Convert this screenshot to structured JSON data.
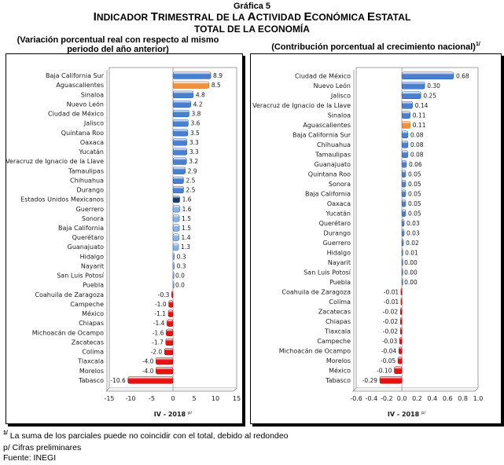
{
  "header": {
    "graph_number": "Gráfica 5",
    "title_parts": [
      {
        "big": "I",
        "small": "NDICADOR "
      },
      {
        "big": "T",
        "small": "RIMESTRAL DE LA "
      },
      {
        "big": "A",
        "small": "CTIVIDAD "
      },
      {
        "big": "E",
        "small": "CONÓMICA "
      },
      {
        "big": "E",
        "small": "STATAL"
      }
    ],
    "title": "Indicador Trimestral de la Actividad Económica Estatal",
    "subtitle": "TOTAL DE LA ECONOMÍA"
  },
  "footnotes": {
    "note1_marker": "1/",
    "note1": " La suma de los parciales puede no coincidir con el total, debido al redondeo",
    "note2": "p/ Cifras preliminares",
    "note3": "Fuente: INEGI"
  },
  "colors": {
    "positive": "#4a7fd0",
    "highlight": "#f0923a",
    "national": "#1f3864",
    "small_positive": "#8eb1e3",
    "negative": "#e81010"
  },
  "chart_data": [
    {
      "type": "bar",
      "orientation": "horizontal",
      "title": "(Variación porcentual real con respecto al mismo periodo del año anterior)",
      "title_lines": [
        "(Variación porcentual real con respecto al mismo",
        "periodo del año anterior)"
      ],
      "xlabel": "IV - 2018",
      "xlabel_sup": "p/",
      "xlim": [
        -15,
        15
      ],
      "xticks": [
        -15,
        -10,
        -5,
        0,
        5,
        10,
        15
      ],
      "xtick_labels": [
        "-15",
        "-10",
        "-5",
        "0",
        "5",
        "10",
        "15"
      ],
      "grid": false,
      "categories": [
        "Baja California Sur",
        "Aguascalientes",
        "Sinaloa",
        "Nuevo León",
        "Ciudad de México",
        "Jalisco",
        "Quintana Roo",
        "Oaxaca",
        "Yucatán",
        "Veracruz de Ignacio de la Llave",
        "Tamaulipas",
        "Chihuahua",
        "Durango",
        "Estados Unidos Mexicanos",
        "Guerrero",
        "Sonora",
        "Baja California",
        "Querétaro",
        "Guanajuato",
        "Hidalgo",
        "Nayarit",
        "San Luis Potosí",
        "Puebla",
        "Coahuila de Zaragoza",
        "Campeche",
        "México",
        "Chiapas",
        "Michoacán de Ocampo",
        "Zacatecas",
        "Colima",
        "Tlaxcala",
        "Morelos",
        "Tabasco"
      ],
      "values": [
        8.9,
        8.5,
        4.8,
        4.2,
        3.8,
        3.6,
        3.5,
        3.3,
        3.3,
        3.2,
        2.9,
        2.5,
        2.5,
        1.6,
        1.6,
        1.5,
        1.5,
        1.4,
        1.3,
        0.3,
        0.3,
        0.0,
        0.0,
        -0.3,
        -1.0,
        -1.1,
        -1.4,
        -1.6,
        -1.7,
        -2.0,
        -4.0,
        -4.0,
        -10.6
      ],
      "value_labels": [
        "8.9",
        "8.5",
        "4.8",
        "4.2",
        "3.8",
        "3.6",
        "3.5",
        "3.3",
        "3.3",
        "3.2",
        "2.9",
        "2.5",
        "2.5",
        "1.6",
        "1.6",
        "1.5",
        "1.5",
        "1.4",
        "1.3",
        "0.3",
        "0.3",
        "0.0",
        "0.0",
        "-0.3",
        "-1.0",
        "-1.1",
        "-1.4",
        "-1.6",
        "-1.7",
        "-2.0",
        "-4.0",
        "-4.0",
        "-10.6"
      ],
      "highlight": {
        "Aguascalientes": "highlight",
        "Estados Unidos Mexicanos": "national"
      }
    },
    {
      "type": "bar",
      "orientation": "horizontal",
      "title": "(Contribución porcentual al crecimiento nacional)",
      "title_sup": "1/",
      "xlabel": "IV - 2018",
      "xlabel_sup": "p/",
      "xlim": [
        -0.6,
        1.0
      ],
      "xticks": [
        -0.6,
        -0.4,
        -0.2,
        0.0,
        0.2,
        0.4,
        0.6,
        0.8,
        1.0
      ],
      "xtick_labels": [
        "-0.6",
        "-0.4",
        "-0.2",
        "0.0",
        "0.2",
        "0.4",
        "0.6",
        "0.8",
        "1.0"
      ],
      "grid": false,
      "categories": [
        "Ciudad de México",
        "Nuevo León",
        "Jalisco",
        "Veracruz de Ignacio de la Llave",
        "Sinaloa",
        "Aguascalientes",
        "Baja California Sur",
        "Chihuahua",
        "Tamaulipas",
        "Guanajuato",
        "Quintana Roo",
        "Sonora",
        "Baja California",
        "Oaxaca",
        "Yucatán",
        "Querétaro",
        "Durango",
        "Guerrero",
        "Hidalgo",
        "Nayarit",
        "San Luis Potosí",
        "Puebla",
        "Coahuila de Zaragoza",
        "Colima",
        "Zacatecas",
        "Chiapas",
        "Tlaxcala",
        "Campeche",
        "Michoacán de Ocampo",
        "Morelos",
        "México",
        "Tabasco"
      ],
      "values": [
        0.68,
        0.3,
        0.25,
        0.14,
        0.11,
        0.11,
        0.08,
        0.08,
        0.08,
        0.06,
        0.05,
        0.05,
        0.05,
        0.05,
        0.05,
        0.03,
        0.03,
        0.02,
        0.01,
        0.0,
        0.0,
        0.0,
        -0.01,
        -0.01,
        -0.02,
        -0.02,
        -0.02,
        -0.03,
        -0.04,
        -0.05,
        -0.1,
        -0.29
      ],
      "value_labels": [
        "0.68",
        "0.30",
        "0.25",
        "0.14",
        "0.11",
        "0.11",
        "0.08",
        "0.08",
        "0.08",
        "0.06",
        "0.05",
        "0.05",
        "0.05",
        "0.05",
        "0.05",
        "0.03",
        "0.03",
        "0.02",
        "0.01",
        "0.00",
        "0.00",
        "0.00",
        "-0.01",
        "-0.01",
        "-0.02",
        "-0.02",
        "-0.02",
        "-0.03",
        "-0.04",
        "-0.05",
        "-0.10",
        "-0.29"
      ],
      "highlight": {
        "Aguascalientes": "highlight"
      }
    }
  ]
}
